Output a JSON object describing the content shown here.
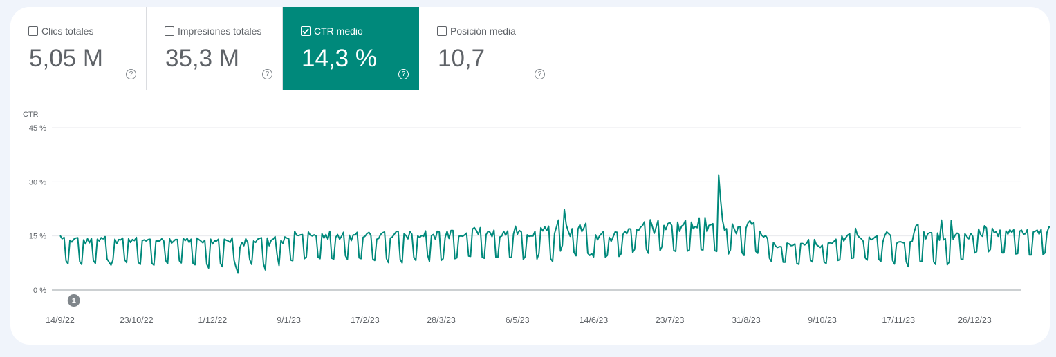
{
  "metrics": [
    {
      "label": "Clics totales",
      "value": "5,05 M",
      "checked": false
    },
    {
      "label": "Impresiones totales",
      "value": "35,3 M",
      "checked": false
    },
    {
      "label": "CTR medio",
      "value": "14,3 %",
      "checked": true
    },
    {
      "label": "Posición media",
      "value": "10,7",
      "checked": false
    }
  ],
  "help_glyph": "?",
  "accent_color": "#00897b",
  "annotation_marker": {
    "label": "1",
    "date": "2022-09-21"
  },
  "chart_data": {
    "type": "line",
    "ylabel": "CTR",
    "y_ticks": [
      "45 %",
      "30 %",
      "15 %",
      "0 %"
    ],
    "ylim": [
      0,
      45
    ],
    "x_ticks": [
      "14/9/22",
      "23/10/22",
      "1/12/22",
      "9/1/23",
      "17/2/23",
      "28/3/23",
      "6/5/23",
      "14/6/23",
      "23/7/23",
      "31/8/23",
      "9/10/23",
      "17/11/23",
      "26/12/23"
    ],
    "x_range": [
      "2022-09-14",
      "2024-01-10"
    ],
    "grid": true,
    "series": [
      {
        "color": "#00897b",
        "x_start": "2022-09-14",
        "step_days": 1,
        "values": [
          15.1,
          14.2,
          14.6,
          8.1,
          7.3,
          13.8,
          13.3,
          14.1,
          14.4,
          14.5,
          7.9,
          7.1,
          13.9,
          12.8,
          14.2,
          13.1,
          14.3,
          8.2,
          7.4,
          14.1,
          13.6,
          14.5,
          14.2,
          14.8,
          8.6,
          7.8,
          6.9,
          8.3,
          14.1,
          12.9,
          14.0,
          13.9,
          14.4,
          8.4,
          7.6,
          14.2,
          13.2,
          14.0,
          13.7,
          14.6,
          7.7,
          7.1,
          13.7,
          13.9,
          13.6,
          14.0,
          14.1,
          7.4,
          6.9,
          13.6,
          13.6,
          13.6,
          14.2,
          13.6,
          8.2,
          7.3,
          14.2,
          13.0,
          13.5,
          14.0,
          14.0,
          8.1,
          7.5,
          14.3,
          13.7,
          14.3,
          13.2,
          14.1,
          7.4,
          7.0,
          14.4,
          14.0,
          13.6,
          13.1,
          13.8,
          7.2,
          6.1,
          14.1,
          12.8,
          13.6,
          13.6,
          14.1,
          7.4,
          6.5,
          14.1,
          13.8,
          13.6,
          13.2,
          14.5,
          8.2,
          6.3,
          4.7,
          11.8,
          13.2,
          12.3,
          14.2,
          13.1,
          8.4,
          7.1,
          13.6,
          13.2,
          14.1,
          14.3,
          14.5,
          7.4,
          5.6,
          14.4,
          12.3,
          13.8,
          14.1,
          14.8,
          9.9,
          6.8,
          13.8,
          12.9,
          14.7,
          14.4,
          14.2,
          8.3,
          8.1,
          16.3,
          15.2,
          15.1,
          15.3,
          15.4,
          8.7,
          9.2,
          16.1,
          15.2,
          15.0,
          15.3,
          15.0,
          9.1,
          8.7,
          15.6,
          14.4,
          15.4,
          14.1,
          16.3,
          8.8,
          8.6,
          14.6,
          15.4,
          14.1,
          14.9,
          16.0,
          9.5,
          8.5,
          15.2,
          13.7,
          15.3,
          15.3,
          16.0,
          8.9,
          8.7,
          14.6,
          14.9,
          15.6,
          16.0,
          15.2,
          8.6,
          8.2,
          14.1,
          14.3,
          15.4,
          15.9,
          16.1,
          8.7,
          7.6,
          14.4,
          14.7,
          15.5,
          16.2,
          16.3,
          8.5,
          7.5,
          15.6,
          15.1,
          14.2,
          16.2,
          15.5,
          9.1,
          8.2,
          15.0,
          14.6,
          15.1,
          14.9,
          16.4,
          9.8,
          7.9,
          15.1,
          15.4,
          14.1,
          16.3,
          16.1,
          8.2,
          8.7,
          14.6,
          16.3,
          14.3,
          16.5,
          16.5,
          8.7,
          8.9,
          14.9,
          15.0,
          14.9,
          15.3,
          15.8,
          9.4,
          9.3,
          16.9,
          17.3,
          16.5,
          15.4,
          17.3,
          9.1,
          8.8,
          15.4,
          16.3,
          16.0,
          14.8,
          16.6,
          9.0,
          9.0,
          14.7,
          15.0,
          16.3,
          15.2,
          16.4,
          9.1,
          9.0,
          15.5,
          17.7,
          15.5,
          16.5,
          16.1,
          8.5,
          9.3,
          15.3,
          14.9,
          15.0,
          15.0,
          16.3,
          8.6,
          10.1,
          17.3,
          16.4,
          17.5,
          16.5,
          17.7,
          8.7,
          7.9,
          15.7,
          17.5,
          19.4,
          10.8,
          12.4,
          22.4,
          18.1,
          16.3,
          14.9,
          17.0,
          10.4,
          9.5,
          16.9,
          18.1,
          16.2,
          17.2,
          18.5,
          10.2,
          9.6,
          10.1,
          9.2,
          15.3,
          13.9,
          15.0,
          15.6,
          16.2,
          9.1,
          9.6,
          14.6,
          13.5,
          14.8,
          16.1,
          16.0,
          9.3,
          10.0,
          15.4,
          16.3,
          15.6,
          17.0,
          16.9,
          10.4,
          11.3,
          16.7,
          16.5,
          17.4,
          17.8,
          18.9,
          11.3,
          10.2,
          19.5,
          17.7,
          15.7,
          17.4,
          19.3,
          10.9,
          12.1,
          17.9,
          16.8,
          18.4,
          18.7,
          17.9,
          11.0,
          10.7,
          18.8,
          16.3,
          17.7,
          18.1,
          19.3,
          10.8,
          11.1,
          18.8,
          17.0,
          17.6,
          17.3,
          20.0,
          11.2,
          11.1,
          20.1,
          16.2,
          17.9,
          18.1,
          18.4,
          10.9,
          10.7,
          31.9,
          24.8,
          19.2,
          16.6,
          17.0,
          10.0,
          11.1,
          18.3,
          16.9,
          15.6,
          17.6,
          17.5,
          10.3,
          9.6,
          17.2,
          18.6,
          19.2,
          18.2,
          18.7,
          10.7,
          10.2,
          16.3,
          15.2,
          14.7,
          15.1,
          14.2,
          8.8,
          7.9,
          13.2,
          12.3,
          11.8,
          12.0,
          12.0,
          7.7,
          7.7,
          13.0,
          12.8,
          12.3,
          12.4,
          12.8,
          7.4,
          7.1,
          12.9,
          12.9,
          12.5,
          12.9,
          14.0,
          8.3,
          7.8,
          14.0,
          12.6,
          12.2,
          11.8,
          12.4,
          7.7,
          7.4,
          13.0,
          13.1,
          12.9,
          13.5,
          14.1,
          8.2,
          8.4,
          15.0,
          13.6,
          14.5,
          15.2,
          15.6,
          8.8,
          8.9,
          17.1,
          15.2,
          14.6,
          14.2,
          13.5,
          8.9,
          8.3,
          14.7,
          13.9,
          14.2,
          14.7,
          15.0,
          8.5,
          7.9,
          13.3,
          15.1,
          16.1,
          15.6,
          15.1,
          8.2,
          7.2,
          12.9,
          13.3,
          13.4,
          13.2,
          13.0,
          7.8,
          6.5,
          13.4,
          13.4,
          16.0,
          17.8,
          18.2,
          8.0,
          7.9,
          16.1,
          14.2,
          15.6,
          15.9,
          15.9,
          7.8,
          7.1,
          15.8,
          13.8,
          19.4,
          13.9,
          14.2,
          7.0,
          7.8,
          19.3,
          14.1,
          15.2,
          15.8,
          15.4,
          8.6,
          8.4,
          15.6,
          14.8,
          14.2,
          15.7,
          14.9,
          10.3,
          10.6,
          16.9,
          15.3,
          14.9,
          17.8,
          17.2,
          10.6,
          11.2,
          17.1,
          15.9,
          16.2,
          14.9,
          16.6,
          10.3,
          10.3,
          16.4,
          15.5,
          16.7,
          16.0,
          16.7,
          10.0,
          10.1,
          16.3,
          16.6,
          15.5,
          15.6,
          16.8,
          9.7,
          9.7,
          16.1,
          16.3,
          16.6,
          15.5,
          16.8,
          9.8,
          10.3,
          15.9,
          17.5,
          17.4,
          16.6,
          16.2,
          10.4,
          9.7,
          16.4,
          17.3,
          16.4,
          17.4,
          16.4,
          12.0
        ]
      }
    ]
  }
}
